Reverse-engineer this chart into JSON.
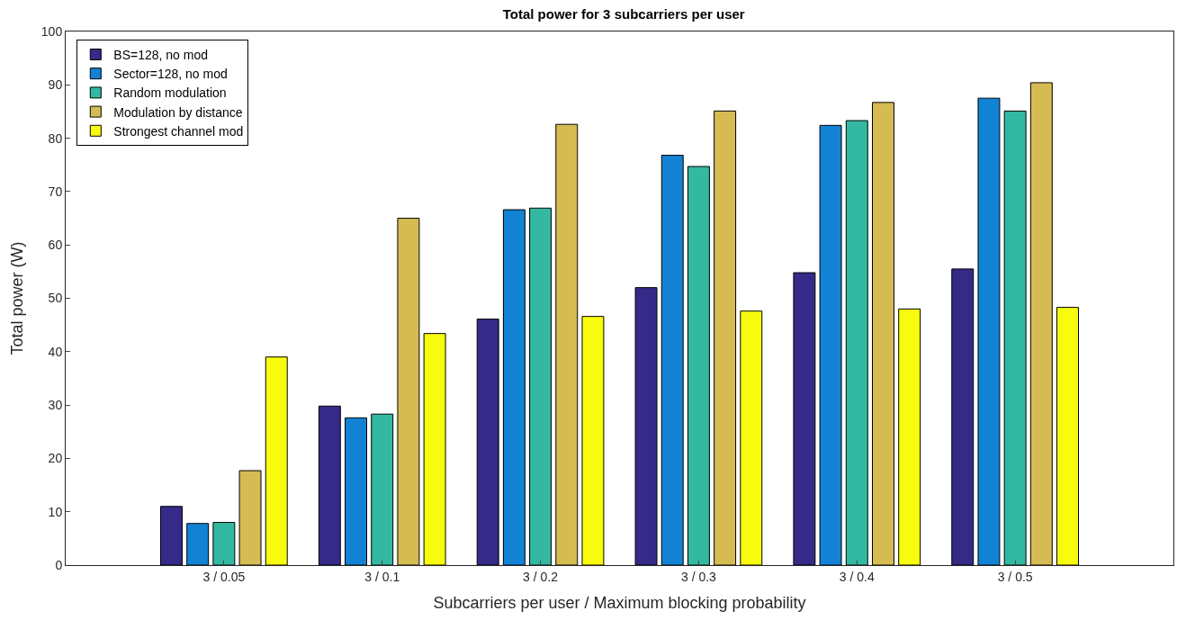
{
  "chart_data": {
    "type": "bar",
    "title": "Total power for 3 subcarriers per user",
    "xlabel": "Subcarriers per user / Maximum blocking probability",
    "ylabel": "Total power (W)",
    "categories": [
      "3 / 0.05",
      "3 / 0.1",
      "3 / 0.2",
      "3 / 0.3",
      "3 / 0.4",
      "3 / 0.5"
    ],
    "series": [
      {
        "name": "BS=128, no mod",
        "color": "#352a87",
        "values": [
          11,
          29.8,
          46.1,
          52,
          54.8,
          55.5
        ]
      },
      {
        "name": "Sector=128, no mod",
        "color": "#1283d4",
        "values": [
          7.8,
          27.6,
          66.6,
          76.8,
          82.4,
          87.5
        ]
      },
      {
        "name": "Random modulation",
        "color": "#33b8a1",
        "values": [
          8,
          28.3,
          66.9,
          74.7,
          83.3,
          85.1
        ]
      },
      {
        "name": "Modulation by distance",
        "color": "#d6bb53",
        "values": [
          17.7,
          65,
          82.6,
          85.1,
          86.7,
          90.4
        ]
      },
      {
        "name": "Strongest channel mod",
        "color": "#f9fb0e",
        "values": [
          39,
          43.4,
          46.6,
          47.6,
          48,
          48.3
        ]
      }
    ],
    "ylim": [
      0,
      100
    ],
    "yticks": [
      0,
      10,
      20,
      30,
      40,
      50,
      60,
      70,
      80,
      90,
      100
    ],
    "legend": "top left"
  }
}
